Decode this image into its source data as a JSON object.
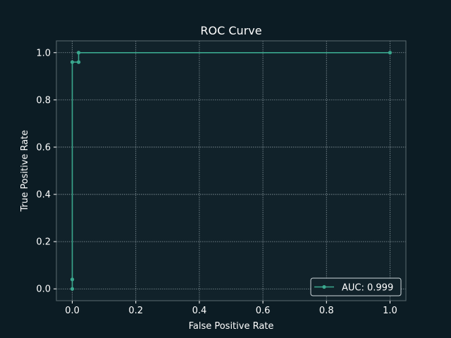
{
  "chart_data": {
    "type": "line",
    "title": "ROC Curve",
    "xlabel": "False Positive Rate",
    "ylabel": "True Positive Rate",
    "xlim": [
      -0.05,
      1.05
    ],
    "ylim": [
      -0.05,
      1.05
    ],
    "xticks": [
      0.0,
      0.2,
      0.4,
      0.6,
      0.8,
      1.0
    ],
    "yticks": [
      0.0,
      0.2,
      0.4,
      0.6,
      0.8,
      1.0
    ],
    "xtick_labels": [
      "0.0",
      "0.2",
      "0.4",
      "0.6",
      "0.8",
      "1.0"
    ],
    "ytick_labels": [
      "0.0",
      "0.2",
      "0.4",
      "0.6",
      "0.8",
      "1.0"
    ],
    "grid": true,
    "legend_position": "lower-right",
    "series": [
      {
        "name": "AUC: 0.999",
        "color": "#3aa88e",
        "x": [
          0.0,
          0.0,
          0.0,
          0.0,
          0.02,
          0.02,
          0.02,
          1.0
        ],
        "y": [
          0.0,
          0.04,
          0.04,
          0.96,
          0.96,
          0.96,
          1.0,
          1.0
        ]
      }
    ]
  },
  "colors": {
    "background": "#0c1c24",
    "plot_background": "#11222a",
    "grid": "#8a9aa0",
    "spine": "#5a6a70",
    "text": "#ffffff"
  }
}
